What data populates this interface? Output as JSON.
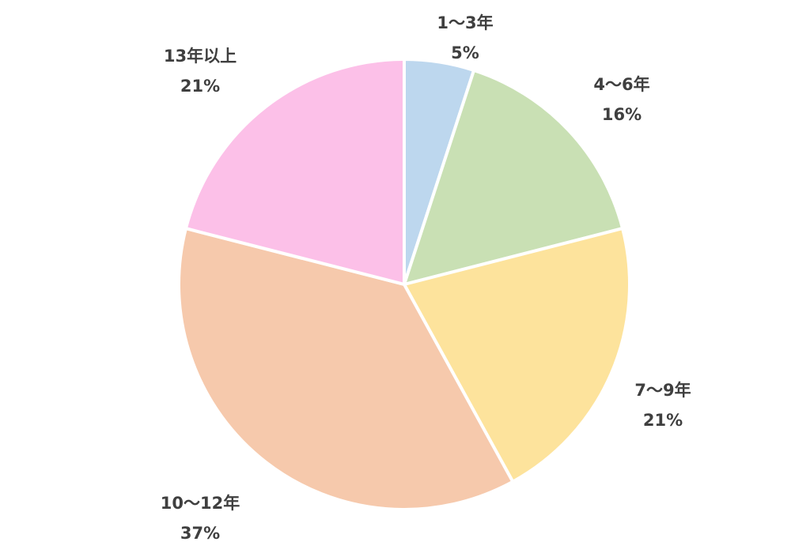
{
  "chart_data": {
    "type": "pie",
    "title": "",
    "slices": [
      {
        "label": "1～3年",
        "value": 5,
        "display": "5%",
        "color": "#BDD7EE"
      },
      {
        "label": "4～6年",
        "value": 16,
        "display": "16%",
        "color": "#C9E0B4"
      },
      {
        "label": "7～9年",
        "value": 21,
        "display": "21%",
        "color": "#FDE39C"
      },
      {
        "label": "10～12年",
        "value": 37,
        "display": "37%",
        "color": "#F6C9AC"
      },
      {
        "label": "13年以上",
        "value": 21,
        "display": "21%",
        "color": "#FCC0E8"
      }
    ],
    "start_angle": "12 o'clock",
    "direction": "clockwise",
    "legend": "none (category labels placed outside slices)"
  }
}
